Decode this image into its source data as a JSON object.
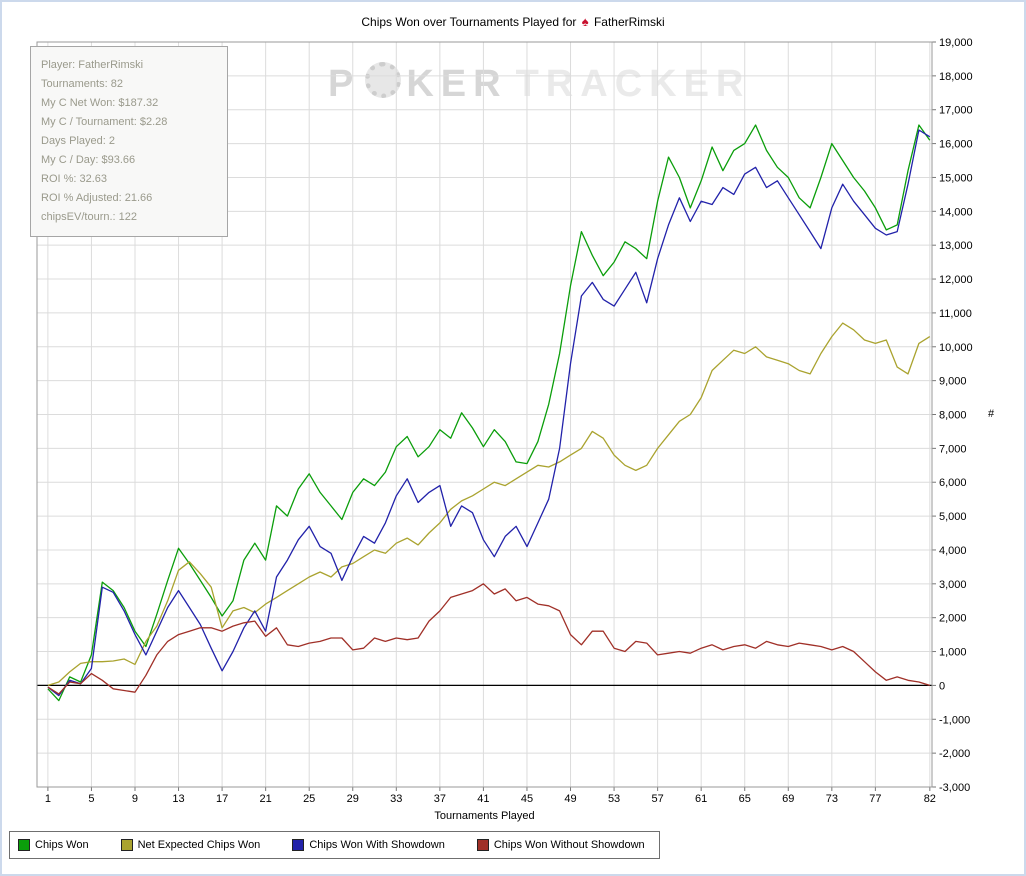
{
  "title": {
    "text": "Chips Won over Tournaments Played for",
    "player": "FatherRimski",
    "logo_icon": "red-spade"
  },
  "watermark": {
    "part1": "P",
    "part2": "KER",
    "part3": "TRACKER",
    "chip_icon": "poker-chip"
  },
  "stats_box": {
    "lines": [
      "Player: FatherRimski",
      "Tournaments: 82",
      "My C Net Won: $187.32",
      "My C / Tournament: $2.28",
      "Days Played: 2",
      "My C / Day: $93.66",
      "ROI %: 32.63",
      "ROI % Adjusted: 21.66",
      "chipsEV/tourn.: 122"
    ]
  },
  "axes": {
    "xlabel": "Tournaments Played",
    "ylabel": "#"
  },
  "chart_data": {
    "type": "line",
    "title": "Chips Won over Tournaments Played for FatherRimski",
    "xlabel": "Tournaments Played",
    "ylabel": "#",
    "xlim": [
      1,
      82
    ],
    "ylim": [
      -3000,
      19000
    ],
    "y_tick_step": 1000,
    "grid": true,
    "legend_position": "bottom",
    "x_ticks": [
      1,
      5,
      9,
      13,
      17,
      21,
      25,
      29,
      33,
      37,
      41,
      45,
      49,
      53,
      57,
      61,
      65,
      69,
      73,
      77,
      82
    ],
    "x": [
      1,
      2,
      3,
      4,
      5,
      6,
      7,
      8,
      9,
      10,
      11,
      12,
      13,
      14,
      15,
      16,
      17,
      18,
      19,
      20,
      21,
      22,
      23,
      24,
      25,
      26,
      27,
      28,
      29,
      30,
      31,
      32,
      33,
      34,
      35,
      36,
      37,
      38,
      39,
      40,
      41,
      42,
      43,
      44,
      45,
      46,
      47,
      48,
      49,
      50,
      51,
      52,
      53,
      54,
      55,
      56,
      57,
      58,
      59,
      60,
      61,
      62,
      63,
      64,
      65,
      66,
      67,
      68,
      69,
      70,
      71,
      72,
      73,
      74,
      75,
      76,
      77,
      78,
      79,
      80,
      81,
      82
    ],
    "series": [
      {
        "name": "Chips Won",
        "color": "#0b9e0b",
        "values": [
          -100,
          -450,
          250,
          100,
          900,
          3050,
          2800,
          2300,
          1600,
          1150,
          2100,
          3100,
          4050,
          3600,
          3100,
          2600,
          2050,
          2500,
          3700,
          4200,
          3700,
          5300,
          5000,
          5800,
          6250,
          5700,
          5300,
          4900,
          5700,
          6100,
          5900,
          6300,
          7050,
          7350,
          6750,
          7050,
          7550,
          7300,
          8050,
          7600,
          7050,
          7550,
          7200,
          6600,
          6550,
          7200,
          8300,
          9800,
          11800,
          13400,
          12700,
          12100,
          12500,
          13100,
          12900,
          12600,
          14300,
          15600,
          15000,
          14100,
          14900,
          15900,
          15200,
          15800,
          16000,
          16550,
          15800,
          15300,
          15000,
          14400,
          14100,
          15000,
          16000,
          15500,
          15000,
          14600,
          14100,
          13450,
          13600,
          15200,
          16550,
          16100
        ]
      },
      {
        "name": "Net Expected Chips Won",
        "color": "#aaa32f",
        "values": [
          0,
          100,
          400,
          650,
          700,
          700,
          720,
          780,
          620,
          1300,
          1750,
          2500,
          3400,
          3650,
          3300,
          2900,
          1700,
          2200,
          2300,
          2150,
          2400,
          2600,
          2800,
          3000,
          3200,
          3350,
          3200,
          3500,
          3600,
          3800,
          4000,
          3900,
          4200,
          4350,
          4150,
          4500,
          4800,
          5200,
          5450,
          5600,
          5800,
          6000,
          5900,
          6100,
          6300,
          6500,
          6450,
          6600,
          6800,
          7000,
          7500,
          7300,
          6800,
          6500,
          6350,
          6500,
          7000,
          7400,
          7800,
          8000,
          8500,
          9300,
          9600,
          9900,
          9800,
          10000,
          9700,
          9600,
          9500,
          9300,
          9200,
          9800,
          10300,
          10700,
          10500,
          10200,
          10100,
          10200,
          9400,
          9200,
          10100,
          10300
        ]
      },
      {
        "name": "Chips Won With Showdown",
        "color": "#2222aa",
        "values": [
          -50,
          -300,
          150,
          50,
          500,
          2900,
          2750,
          2200,
          1500,
          900,
          1600,
          2300,
          2800,
          2300,
          1800,
          1100,
          430,
          1000,
          1700,
          2200,
          1600,
          3200,
          3700,
          4300,
          4700,
          4100,
          3900,
          3100,
          3800,
          4400,
          4200,
          4800,
          5600,
          6100,
          5400,
          5700,
          5900,
          4700,
          5300,
          5100,
          4300,
          3800,
          4400,
          4700,
          4100,
          4800,
          5500,
          7000,
          9500,
          11500,
          11900,
          11400,
          11200,
          11700,
          12200,
          11300,
          12600,
          13600,
          14400,
          13700,
          14300,
          14200,
          14700,
          14500,
          15100,
          15300,
          14700,
          14900,
          14400,
          13900,
          13400,
          12900,
          14100,
          14800,
          14300,
          13900,
          13500,
          13300,
          13400,
          14800,
          16400,
          16200
        ]
      },
      {
        "name": "Chips Won Without Showdown",
        "color": "#a03028",
        "values": [
          -50,
          -250,
          100,
          50,
          350,
          150,
          -100,
          -150,
          -200,
          300,
          900,
          1300,
          1500,
          1600,
          1700,
          1700,
          1600,
          1750,
          1850,
          1900,
          1450,
          1700,
          1200,
          1150,
          1250,
          1300,
          1400,
          1400,
          1050,
          1100,
          1400,
          1300,
          1400,
          1350,
          1400,
          1900,
          2200,
          2600,
          2700,
          2800,
          3000,
          2700,
          2850,
          2500,
          2600,
          2400,
          2350,
          2200,
          1500,
          1200,
          1600,
          1600,
          1100,
          1000,
          1300,
          1250,
          900,
          950,
          1000,
          950,
          1100,
          1200,
          1050,
          1150,
          1200,
          1100,
          1300,
          1200,
          1150,
          1250,
          1200,
          1150,
          1050,
          1150,
          1000,
          700,
          400,
          150,
          250,
          150,
          100,
          0
        ]
      }
    ]
  }
}
